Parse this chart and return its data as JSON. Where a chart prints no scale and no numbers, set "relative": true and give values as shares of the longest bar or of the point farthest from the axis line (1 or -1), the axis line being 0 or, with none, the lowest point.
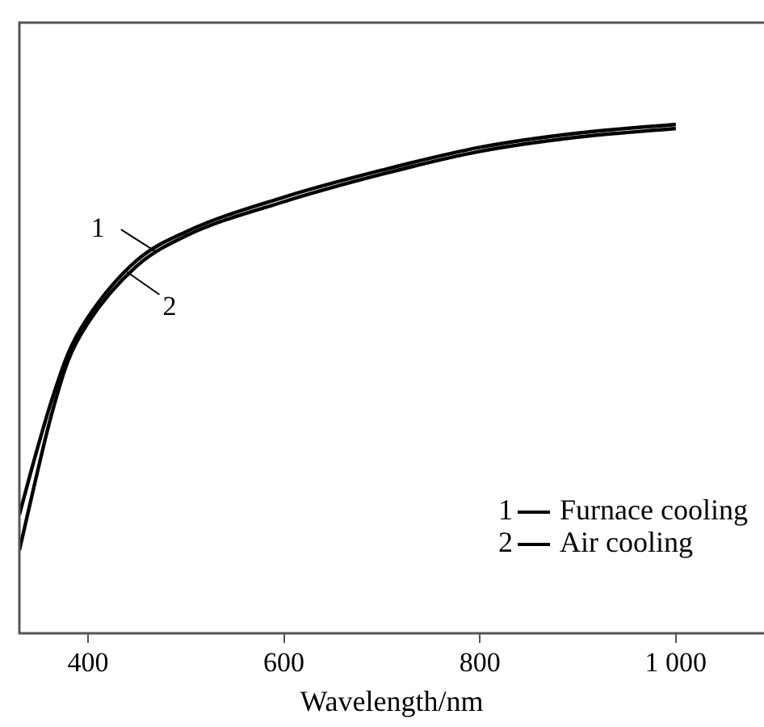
{
  "chart_data": {
    "type": "line",
    "xlabel": "Wavelength/nm",
    "relative": true,
    "xlim": [
      330,
      1090
    ],
    "xticks": [
      400,
      600,
      800,
      {
        "value": 1000,
        "label": "1 000"
      }
    ],
    "legend": "bottom right",
    "marker": "none",
    "line_style": "solid",
    "grid": false,
    "series": [
      {
        "name": "Furnace cooling",
        "color": "#000000",
        "x": [
          330,
          345,
          362,
          380,
          400,
          450,
          500,
          600,
          700,
          800,
          900,
          1000
        ],
        "values": [
          0.233,
          0.34,
          0.452,
          0.551,
          0.621,
          0.733,
          0.789,
          0.857,
          0.91,
          0.955,
          0.983,
          1
        ]
      },
      {
        "name": "Air cooling",
        "color": "#000000",
        "x": [
          330,
          345,
          362,
          380,
          400,
          450,
          500,
          600,
          700,
          800,
          900,
          1000
        ],
        "values": [
          0.163,
          0.289,
          0.424,
          0.537,
          0.61,
          0.722,
          0.781,
          0.848,
          0.902,
          0.947,
          0.975,
          0.992
        ]
      }
    ],
    "annotations": [
      {
        "text": "1",
        "x": 470,
        "y": 0.749
      },
      {
        "text": "2",
        "x": 440,
        "y": 0.71
      }
    ]
  }
}
